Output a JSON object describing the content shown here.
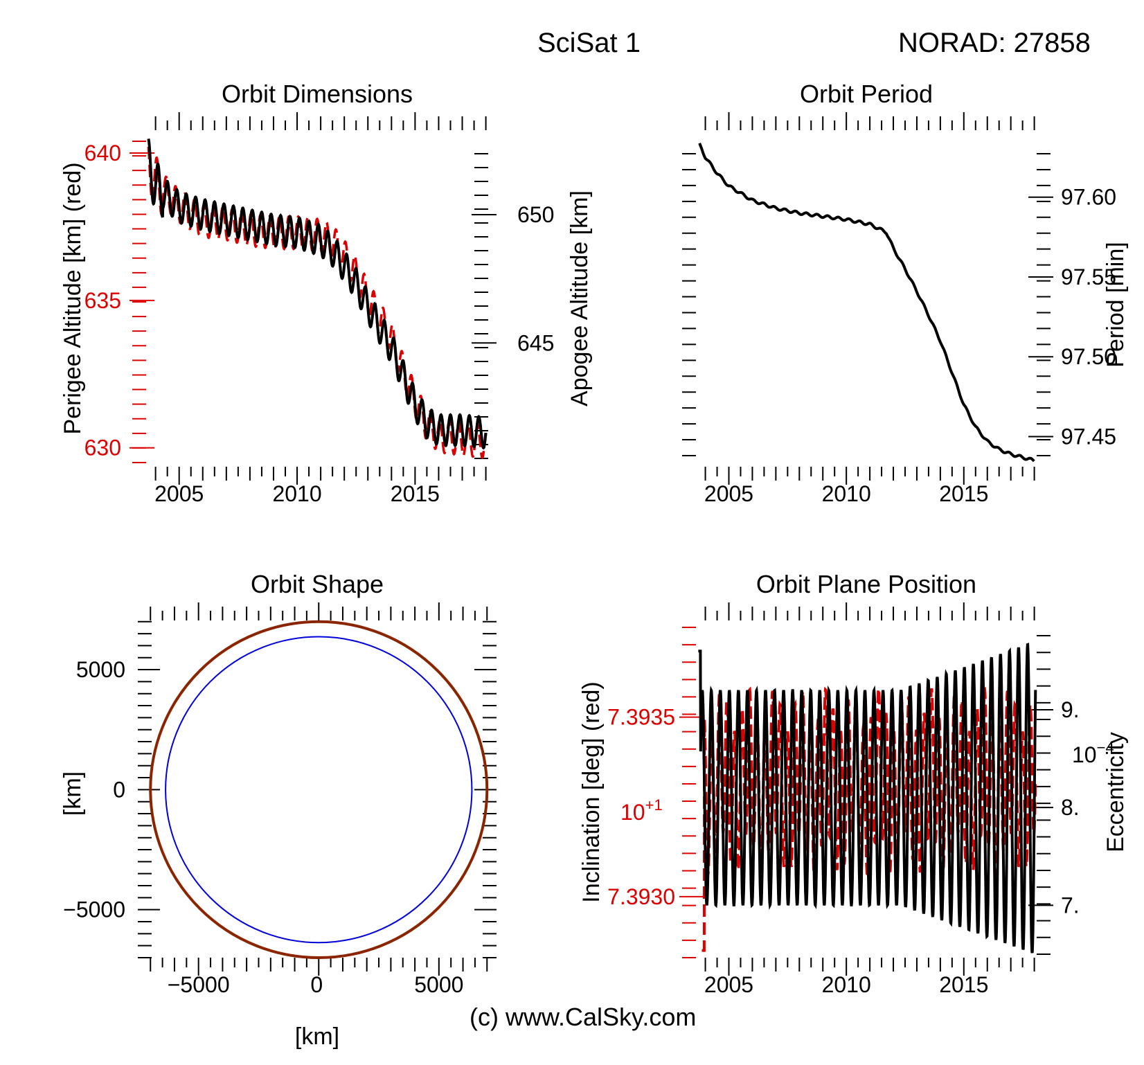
{
  "header": {
    "satellite": "SciSat 1",
    "norad": "NORAD: 27858"
  },
  "footer": {
    "credit": "(c) www.CalSky.com"
  },
  "colors": {
    "primary": "#000000",
    "secondary": "#dd0000",
    "orbit_outer": "#8b2500",
    "orbit_inner": "#0000dd"
  },
  "chart_data": [
    {
      "id": "dims",
      "type": "line",
      "title": "Orbit Dimensions",
      "xlabel": "",
      "xlim": [
        2003.6,
        2018.1
      ],
      "xticks": [
        2005,
        2010,
        2015
      ],
      "ylabel_left": "Perigee Altitude [km] (red)",
      "ylim_left": [
        629.5,
        640.4
      ],
      "yticks_left": [
        630,
        635,
        640
      ],
      "ylabel_right": "Apogee Altitude [km]",
      "ylim_right": [
        640.5,
        652.7
      ],
      "yticks_right": [
        645,
        650
      ],
      "grid": false,
      "series": [
        {
          "name": "Perigee Altitude",
          "axis": "left",
          "color": "#dd0000",
          "dash": true,
          "oscillation": 0.55,
          "cycles_per_year": 2.5,
          "x": [
            2003.7,
            2004,
            2005,
            2006,
            2007,
            2008,
            2009,
            2010,
            2011,
            2011.5,
            2012,
            2012.5,
            2013,
            2013.5,
            2014,
            2014.5,
            2015,
            2015.5,
            2016,
            2017,
            2018
          ],
          "y": [
            639.6,
            639.0,
            638.2,
            637.7,
            637.6,
            637.4,
            637.3,
            637.3,
            637.2,
            637.0,
            636.5,
            635.9,
            635.1,
            634.4,
            633.7,
            632.6,
            631.6,
            630.8,
            630.4,
            630.3,
            630.2
          ]
        },
        {
          "name": "Apogee Altitude",
          "axis": "right",
          "color": "#000000",
          "dash": false,
          "oscillation": 0.6,
          "cycles_per_year": 2.5,
          "x": [
            2003.7,
            2004,
            2005,
            2006,
            2007,
            2008,
            2009,
            2010,
            2011,
            2011.5,
            2012,
            2012.5,
            2013,
            2013.5,
            2014,
            2014.5,
            2015,
            2015.5,
            2016,
            2017,
            2018
          ],
          "y": [
            652.0,
            651.1,
            650.3,
            650.0,
            649.8,
            649.6,
            649.4,
            649.3,
            649.0,
            648.6,
            648.0,
            647.3,
            646.4,
            645.6,
            644.8,
            643.7,
            642.6,
            641.9,
            641.6,
            641.6,
            641.5
          ]
        }
      ]
    },
    {
      "id": "period",
      "type": "line",
      "title": "Orbit Period",
      "xlabel": "",
      "xlim": [
        2003.6,
        2018.1
      ],
      "xticks": [
        2005,
        2010,
        2015
      ],
      "ylabel_right": "Period [min]",
      "ylim_right": [
        97.432,
        97.635
      ],
      "yticks_right": [
        "97.45",
        "97.50",
        "97.55",
        "97.60"
      ],
      "grid": false,
      "series": [
        {
          "name": "Period",
          "axis": "right",
          "color": "#000000",
          "dash": false,
          "x": [
            2003.75,
            2004,
            2004.5,
            2005,
            2006,
            2007,
            2008,
            2009,
            2010,
            2011,
            2011.7,
            2012,
            2012.5,
            2013,
            2013.5,
            2014,
            2014.5,
            2015,
            2015.5,
            2016,
            2016.5,
            2017,
            2017.5,
            2018
          ],
          "y": [
            97.633,
            97.625,
            97.615,
            97.607,
            97.598,
            97.593,
            97.59,
            97.588,
            97.586,
            97.583,
            97.578,
            97.568,
            97.555,
            97.541,
            97.526,
            97.51,
            97.49,
            97.47,
            97.456,
            97.447,
            97.442,
            97.439,
            97.437,
            97.435
          ]
        }
      ]
    },
    {
      "id": "shape",
      "type": "scatter",
      "title": "Orbit Shape",
      "xlabel": "[km]",
      "ylabel": "[km]",
      "xlim": [
        -7180,
        7050
      ],
      "ylim": [
        -7000,
        7050
      ],
      "xticks": [
        "−5000",
        "0",
        "5000"
      ],
      "xtick_values": [
        -5000,
        0,
        5000
      ],
      "yticks": [
        "−5000",
        "0",
        "5000"
      ],
      "ytick_values": [
        -5000,
        0,
        5000
      ],
      "grid": false,
      "circles": [
        {
          "name": "Orbit",
          "radius_km": 7000,
          "color": "#8b2500"
        },
        {
          "name": "Earth",
          "radius_km": 6371,
          "color": "#0000dd"
        }
      ]
    },
    {
      "id": "plane",
      "type": "line",
      "title": "Orbit Plane Position",
      "xlabel": "",
      "xlim": [
        2003.6,
        2018.1
      ],
      "xticks": [
        2005,
        2010,
        2015
      ],
      "ylabel_left": "Inclination [deg] (red)",
      "yticks_left": [
        "7.3930",
        "7.3935"
      ],
      "ytick_values_left": [
        7.393,
        7.3935
      ],
      "ylim_left": [
        7.39283,
        7.39375
      ],
      "y_exponent_left": "10",
      "y_exponent_left_power": "+1",
      "ylabel_right": "Eccentricity",
      "yticks_right": [
        "7.",
        "8.",
        "9."
      ],
      "ytick_values_right": [
        7,
        8,
        9
      ],
      "ylim_right": [
        6.5,
        9.8
      ],
      "y_exponent_right": "10",
      "y_exponent_right_power": "−4",
      "grid": false,
      "series": [
        {
          "name": "Inclination",
          "axis": "left",
          "color": "#dd0000",
          "dash": true,
          "center": 7.39332,
          "amplitude": 0.0002,
          "cycles_per_year": 3.1
        },
        {
          "name": "Eccentricity",
          "axis": "right",
          "color": "#000000",
          "dash": false,
          "center": 8.1,
          "amplitude_start": 1.1,
          "amplitude_end": 1.6,
          "cycles_per_year": 2.6
        }
      ]
    }
  ]
}
